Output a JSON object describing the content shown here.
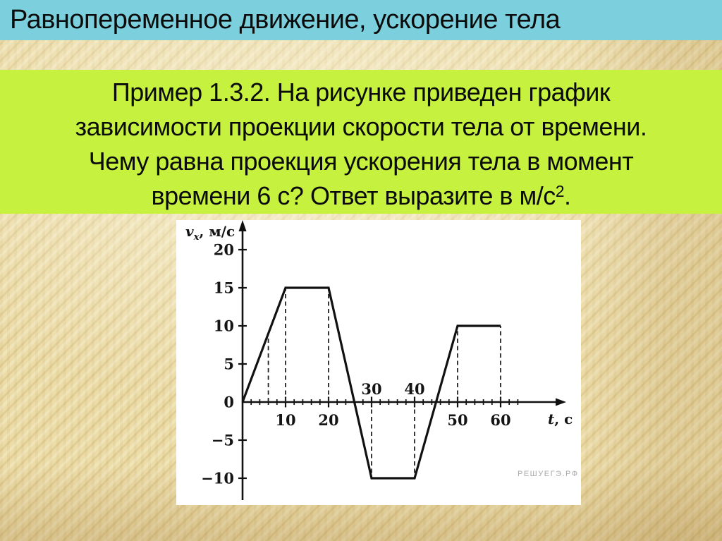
{
  "slide": {
    "title": "Равнопеременное движение, ускорение тела"
  },
  "question": {
    "lines": [
      "Пример 1.3.2. На рисунке приведен график",
      "зависимости проекции скорости тела от времени.",
      "Чему равна проекция ускорения тела в момент"
    ],
    "last_line": {
      "pre": "времени 6 с? Ответ выразите в м/с",
      "sup": "2",
      "post": "."
    }
  },
  "colors": {
    "title_bar_background": "#7ccfdc",
    "question_block_background": "#c6f23f",
    "slide_background": "#eedfae",
    "graph_background": "#ffffff",
    "curve_color": "#111111",
    "watermark_color": "#a9a9a9"
  },
  "chart_data": {
    "type": "line",
    "title": "",
    "xlabel_parts": {
      "var": "t",
      "rest": ", с"
    },
    "ylabel_parts": {
      "var": "v",
      "sub": "x",
      "rest": ", м/с"
    },
    "points": [
      [
        0,
        0
      ],
      [
        10,
        15
      ],
      [
        20,
        15
      ],
      [
        30,
        -10
      ],
      [
        40,
        -10
      ],
      [
        50,
        10
      ],
      [
        60,
        10
      ]
    ],
    "x_ticks": [
      {
        "t": 10,
        "label": "10",
        "side": "below"
      },
      {
        "t": 20,
        "label": "20",
        "side": "below"
      },
      {
        "t": 30,
        "label": "30",
        "side": "above"
      },
      {
        "t": 40,
        "label": "40",
        "side": "above"
      },
      {
        "t": 50,
        "label": "50",
        "side": "below"
      },
      {
        "t": 60,
        "label": "60",
        "side": "below"
      }
    ],
    "x_minor_step": 2,
    "y_ticks": [
      {
        "v": 20,
        "label": "20"
      },
      {
        "v": 15,
        "label": "15"
      },
      {
        "v": 10,
        "label": "10"
      },
      {
        "v": 5,
        "label": "5"
      },
      {
        "v": 0,
        "label": "0"
      },
      {
        "v": -5,
        "label": "−5"
      },
      {
        "v": -10,
        "label": "−10"
      }
    ],
    "guides": [
      {
        "t": 6,
        "v": 9
      },
      {
        "t": 10,
        "v": 15
      },
      {
        "t": 20,
        "v": 15
      },
      {
        "t": 30,
        "v": -10
      },
      {
        "t": 40,
        "v": -10
      },
      {
        "t": 50,
        "v": 10
      },
      {
        "t": 60,
        "v": 10
      }
    ],
    "xlim": [
      0,
      66
    ],
    "ylim": [
      -13,
      23
    ],
    "grid": false,
    "legend": null,
    "watermark": "РЕШУЕГЭ.РФ"
  }
}
